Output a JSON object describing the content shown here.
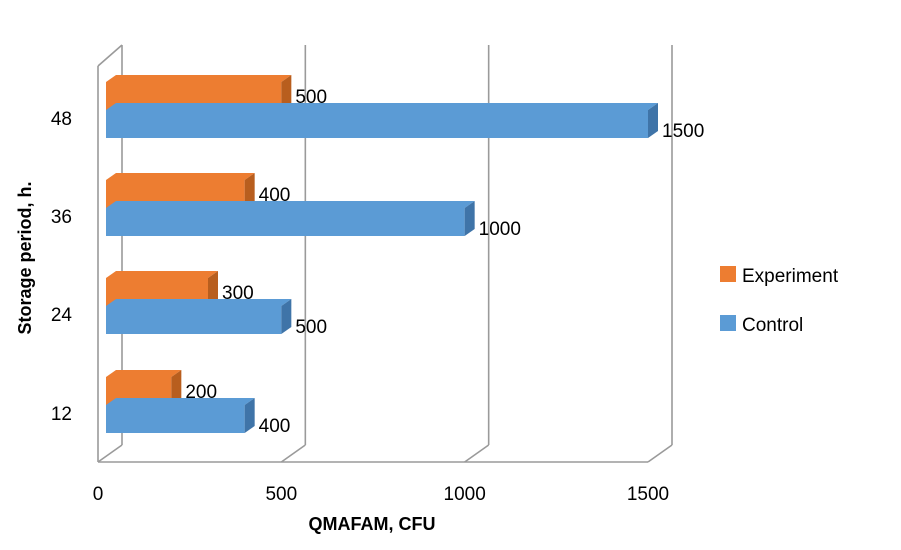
{
  "chart_data": {
    "type": "bar",
    "orientation": "horizontal",
    "style": "3d",
    "categories": [
      "12",
      "24",
      "36",
      "48"
    ],
    "series": [
      {
        "name": "Control",
        "values": [
          400,
          500,
          1000,
          1500
        ],
        "color": "#5B9BD5"
      },
      {
        "name": "Experiment",
        "values": [
          200,
          300,
          400,
          500
        ],
        "color": "#ED7D31"
      }
    ],
    "xlabel": "QMAFAM, CFU",
    "ylabel": "Storage period, h.",
    "xlim": [
      0,
      1500
    ],
    "xticks": [
      "0",
      "500",
      "1000",
      "1500"
    ],
    "grid": true,
    "legend_position": "right",
    "legend": [
      {
        "name": "Experiment",
        "color": "#ED7D31"
      },
      {
        "name": "Control",
        "color": "#5B9BD5"
      }
    ]
  }
}
